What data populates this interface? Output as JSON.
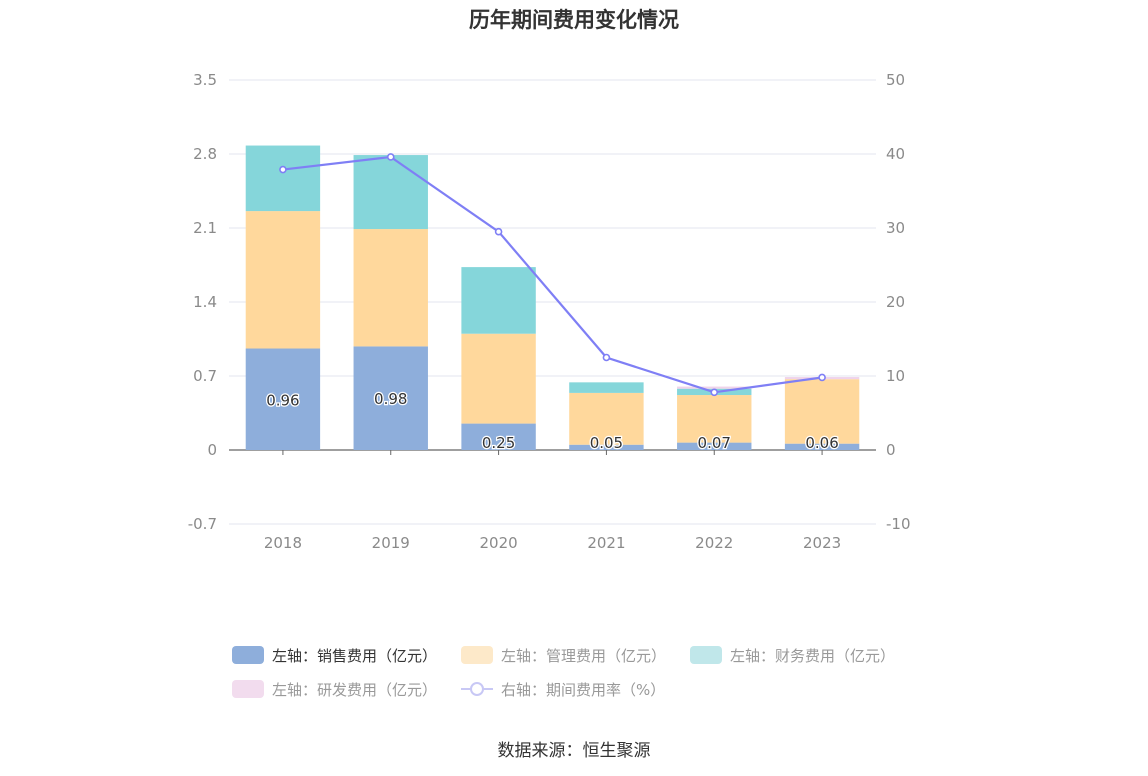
{
  "title": "历年期间费用变化情况",
  "source": "数据来源：恒生聚源",
  "chart_data": {
    "type": "bar",
    "stacked": true,
    "categories": [
      "2018",
      "2019",
      "2020",
      "2021",
      "2022",
      "2023"
    ],
    "left_axis": {
      "ticks": [
        "3.5",
        "2.8",
        "2.1",
        "1.4",
        "0.7",
        "0",
        "-0.7"
      ],
      "ylim": [
        -0.7,
        3.5
      ]
    },
    "right_axis": {
      "ticks": [
        "50",
        "40",
        "30",
        "20",
        "10",
        "0",
        "-10"
      ],
      "ylim": [
        -10,
        50
      ]
    },
    "series": [
      {
        "name": "左轴：销售费用（亿元）",
        "kind": "bar",
        "axis": "left",
        "color": "#8eaedb",
        "values": [
          0.96,
          0.98,
          0.25,
          0.05,
          0.07,
          0.06
        ],
        "labels": [
          "0.96",
          "0.98",
          "0.25",
          "0.05",
          "0.07",
          "0.06"
        ]
      },
      {
        "name": "左轴：管理费用（亿元）",
        "kind": "bar",
        "axis": "left",
        "color": "#ffd89c",
        "legend_color": "#fde9c9",
        "values": [
          1.3,
          1.11,
          0.85,
          0.49,
          0.45,
          0.61
        ]
      },
      {
        "name": "左轴：财务费用（亿元）",
        "kind": "bar",
        "axis": "left",
        "color": "#85d6da",
        "legend_color": "#c0e7ea",
        "values": [
          0.62,
          0.7,
          0.63,
          0.1,
          0.06,
          0.0
        ]
      },
      {
        "name": "左轴：研发费用（亿元）",
        "kind": "bar",
        "axis": "left",
        "color": "#f0d3ea",
        "legend_color": "#f2dcee",
        "values": [
          0.0,
          0.0,
          0.0,
          0.0,
          0.02,
          0.02
        ]
      },
      {
        "name": "右轴：期间费用率（%）",
        "kind": "line",
        "axis": "right",
        "color": "#7f7ff5",
        "legend_color": "#c8c8f5",
        "values": [
          37.9,
          39.6,
          29.5,
          12.5,
          7.8,
          9.8
        ]
      }
    ]
  }
}
